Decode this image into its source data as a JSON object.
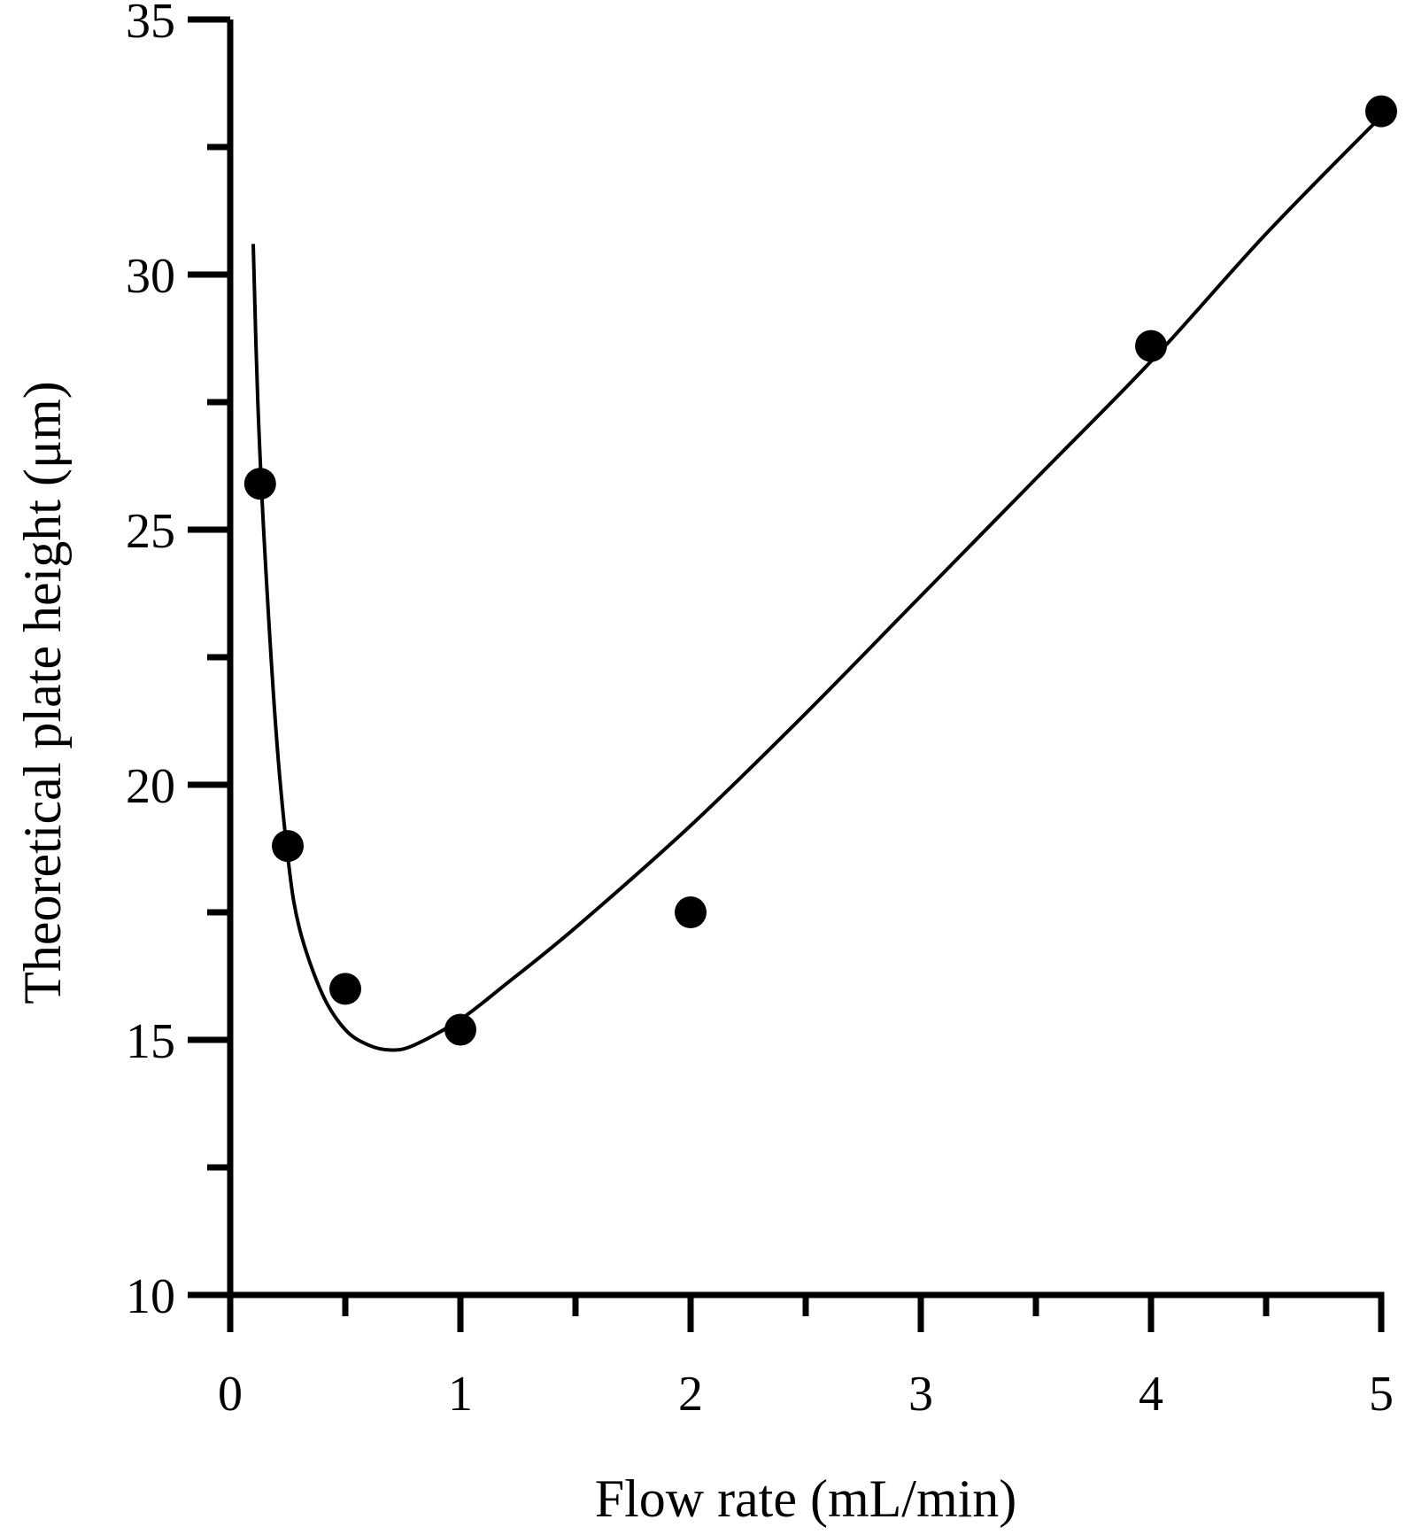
{
  "chart_data": {
    "type": "scatter",
    "title": "",
    "xlabel": "Flow rate (mL/min)",
    "ylabel": "Theoretical plate height (μm)",
    "xlim": [
      0,
      5
    ],
    "ylim": [
      10,
      35
    ],
    "x_ticks": [
      0,
      1,
      2,
      3,
      4,
      5
    ],
    "x_tick_labels": [
      "0",
      "1",
      "2",
      "3",
      "4",
      "5"
    ],
    "x_minor_ticks": [
      0.5,
      1.5,
      2.5,
      3.5,
      4.5
    ],
    "y_ticks": [
      10,
      15,
      20,
      25,
      30,
      35
    ],
    "y_tick_labels": [
      "10",
      "15",
      "20",
      "25",
      "30",
      "35"
    ],
    "y_minor_ticks": [
      12.5,
      17.5,
      22.5,
      27.5,
      32.5
    ],
    "grid": false,
    "series": [
      {
        "marker": "filled-circle",
        "color": "#000000",
        "x": [
          0.13,
          0.25,
          0.5,
          1.0,
          2.0,
          4.0,
          5.0
        ],
        "y": [
          25.9,
          18.8,
          16.0,
          15.2,
          17.5,
          28.6,
          33.2
        ]
      }
    ],
    "fit_curve": {
      "color": "#000000",
      "x": [
        0.1,
        0.12,
        0.15,
        0.2,
        0.25,
        0.3,
        0.4,
        0.5,
        0.6,
        0.7,
        0.8,
        1.0,
        1.2,
        1.5,
        2.0,
        2.5,
        3.0,
        3.5,
        4.0,
        4.5,
        5.0
      ],
      "y": [
        30.6,
        27.5,
        24.6,
        21.0,
        18.6,
        17.2,
        15.9,
        15.2,
        14.9,
        14.8,
        14.9,
        15.4,
        16.1,
        17.2,
        19.2,
        21.4,
        23.7,
        26.0,
        28.3,
        30.8,
        33.1
      ]
    }
  }
}
